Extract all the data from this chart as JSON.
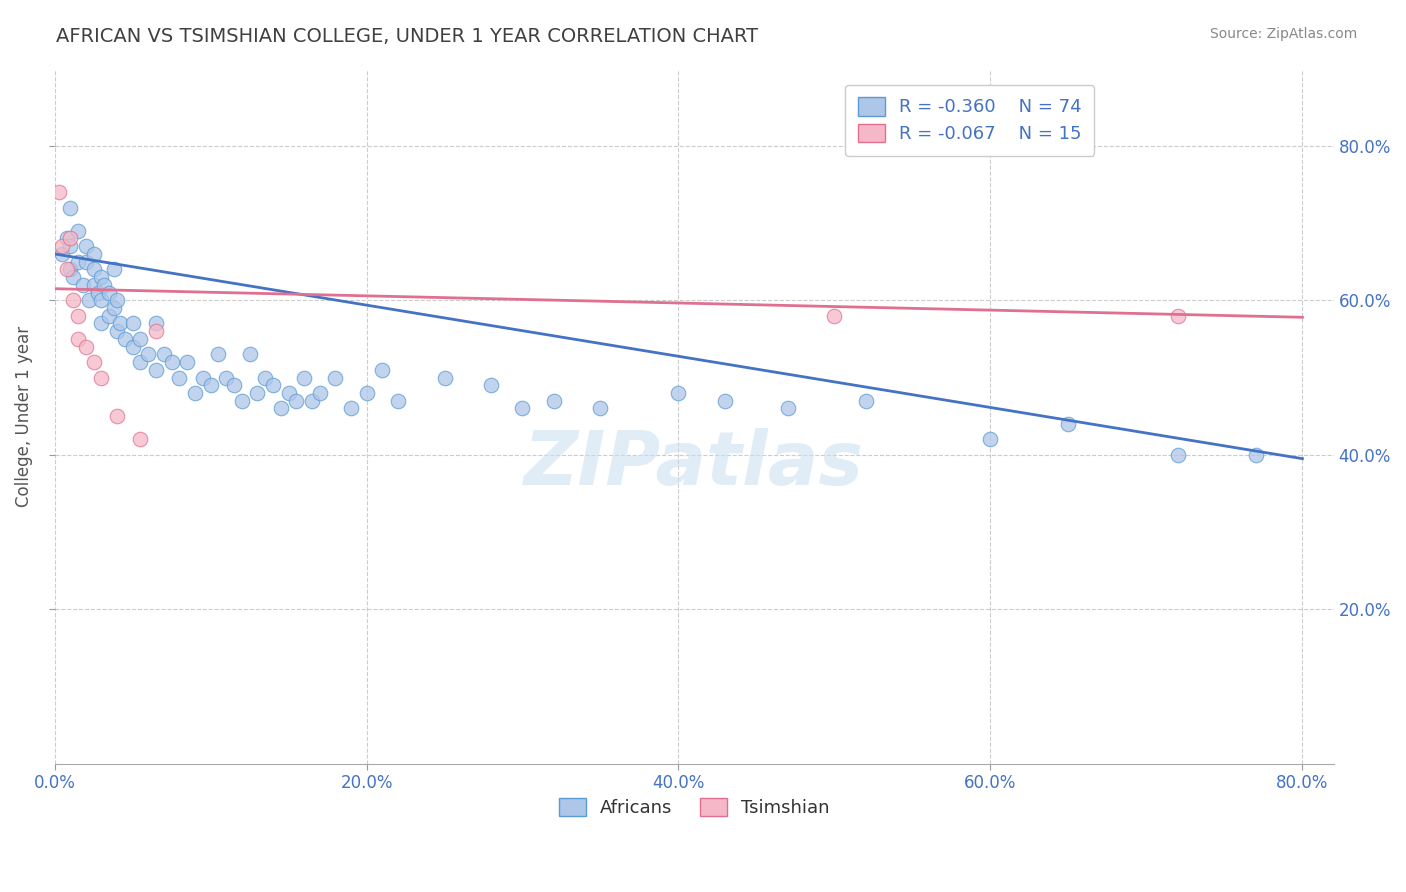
{
  "title": "AFRICAN VS TSIMSHIAN COLLEGE, UNDER 1 YEAR CORRELATION CHART",
  "source_text": "Source: ZipAtlas.com",
  "ylabel": "College, Under 1 year",
  "xlim": [
    0.0,
    0.82
  ],
  "ylim": [
    0.0,
    0.9
  ],
  "xtick_positions": [
    0.0,
    0.2,
    0.4,
    0.6,
    0.8
  ],
  "ytick_positions": [
    0.2,
    0.4,
    0.6,
    0.8
  ],
  "background_color": "#ffffff",
  "grid_color": "#cccccc",
  "african_color": "#aec6e8",
  "tsimshian_color": "#f4b8c8",
  "african_edge_color": "#5b9bd5",
  "tsimshian_edge_color": "#e07090",
  "african_line_color": "#4472c4",
  "tsimshian_line_color": "#e07090",
  "legend_R_african": "R = -0.360",
  "legend_N_african": "N = 74",
  "legend_R_tsimshian": "R = -0.067",
  "legend_N_tsimshian": "N = 15",
  "african_scatter_x": [
    0.005,
    0.008,
    0.01,
    0.01,
    0.01,
    0.012,
    0.015,
    0.015,
    0.018,
    0.02,
    0.02,
    0.022,
    0.025,
    0.025,
    0.025,
    0.028,
    0.03,
    0.03,
    0.03,
    0.032,
    0.035,
    0.035,
    0.038,
    0.038,
    0.04,
    0.04,
    0.042,
    0.045,
    0.05,
    0.05,
    0.055,
    0.055,
    0.06,
    0.065,
    0.065,
    0.07,
    0.075,
    0.08,
    0.085,
    0.09,
    0.095,
    0.1,
    0.105,
    0.11,
    0.115,
    0.12,
    0.125,
    0.13,
    0.135,
    0.14,
    0.145,
    0.15,
    0.155,
    0.16,
    0.165,
    0.17,
    0.18,
    0.19,
    0.2,
    0.21,
    0.22,
    0.25,
    0.28,
    0.3,
    0.32,
    0.35,
    0.4,
    0.43,
    0.47,
    0.52,
    0.6,
    0.65,
    0.72,
    0.77
  ],
  "african_scatter_y": [
    0.66,
    0.68,
    0.64,
    0.67,
    0.72,
    0.63,
    0.65,
    0.69,
    0.62,
    0.65,
    0.67,
    0.6,
    0.64,
    0.62,
    0.66,
    0.61,
    0.6,
    0.63,
    0.57,
    0.62,
    0.58,
    0.61,
    0.59,
    0.64,
    0.56,
    0.6,
    0.57,
    0.55,
    0.57,
    0.54,
    0.55,
    0.52,
    0.53,
    0.57,
    0.51,
    0.53,
    0.52,
    0.5,
    0.52,
    0.48,
    0.5,
    0.49,
    0.53,
    0.5,
    0.49,
    0.47,
    0.53,
    0.48,
    0.5,
    0.49,
    0.46,
    0.48,
    0.47,
    0.5,
    0.47,
    0.48,
    0.5,
    0.46,
    0.48,
    0.51,
    0.47,
    0.5,
    0.49,
    0.46,
    0.47,
    0.46,
    0.48,
    0.47,
    0.46,
    0.47,
    0.42,
    0.44,
    0.4,
    0.4
  ],
  "tsimshian_scatter_x": [
    0.003,
    0.005,
    0.008,
    0.01,
    0.012,
    0.015,
    0.015,
    0.02,
    0.025,
    0.03,
    0.04,
    0.055,
    0.065,
    0.5,
    0.72
  ],
  "tsimshian_scatter_y": [
    0.74,
    0.67,
    0.64,
    0.68,
    0.6,
    0.58,
    0.55,
    0.54,
    0.52,
    0.5,
    0.45,
    0.42,
    0.56,
    0.58,
    0.58
  ],
  "african_trend_x": [
    0.0,
    0.8
  ],
  "african_trend_y": [
    0.66,
    0.395
  ],
  "tsimshian_trend_x": [
    0.0,
    0.8
  ],
  "tsimshian_trend_y": [
    0.615,
    0.578
  ],
  "watermark_text": "ZIPatlas",
  "title_color": "#404040",
  "axis_label_color": "#555555",
  "tick_label_color": "#4472c4",
  "legend_text_color": "#4472c4"
}
